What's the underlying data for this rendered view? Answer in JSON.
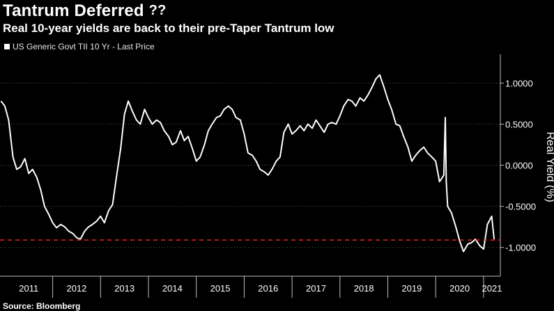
{
  "header": {
    "title": "Tantrum Deferred",
    "title_emoji": "??",
    "subtitle": "Real 10-year yields are back to their pre-Taper Tantrum low"
  },
  "legend": {
    "label": "US Generic Govt TII 10 Yr - Last Price"
  },
  "footer": {
    "source": "Source: Bloomberg"
  },
  "colors": {
    "background": "#000000",
    "line": "#ffffff",
    "reference": "#e8202a",
    "grid": "#5a5a5a"
  },
  "chart_data": {
    "type": "line",
    "title": "Tantrum Deferred",
    "subtitle": "Real 10-year yields are back to their pre-Taper Tantrum low",
    "ylabel": "Real Yield (%)",
    "xlabel": "",
    "ylim": [
      -1.35,
      1.35
    ],
    "xlim": [
      2010.9,
      2021.35
    ],
    "x_ticks": [
      2011,
      2012,
      2013,
      2014,
      2015,
      2016,
      2017,
      2018,
      2019,
      2020,
      2021
    ],
    "y_ticks": [
      1.0,
      0.5,
      0.0,
      -0.5,
      -1.0
    ],
    "y_tick_labels": [
      "1.0000",
      "0.5000",
      "0.0000",
      "-0.5000",
      "-1.0000"
    ],
    "grid": true,
    "legend_position": "top-left",
    "reference_line": {
      "y": -0.91,
      "style": "dashed"
    },
    "series": [
      {
        "name": "US Generic Govt TII 10 Yr - Last Price",
        "x": [
          2010.92,
          2011.0,
          2011.08,
          2011.17,
          2011.25,
          2011.33,
          2011.42,
          2011.5,
          2011.58,
          2011.67,
          2011.75,
          2011.83,
          2011.92,
          2012.0,
          2012.08,
          2012.17,
          2012.25,
          2012.33,
          2012.42,
          2012.5,
          2012.58,
          2012.67,
          2012.75,
          2012.83,
          2012.92,
          2013.0,
          2013.08,
          2013.17,
          2013.25,
          2013.33,
          2013.42,
          2013.5,
          2013.58,
          2013.67,
          2013.75,
          2013.83,
          2013.92,
          2014.0,
          2014.08,
          2014.17,
          2014.25,
          2014.33,
          2014.42,
          2014.5,
          2014.58,
          2014.67,
          2014.75,
          2014.83,
          2014.92,
          2015.0,
          2015.08,
          2015.17,
          2015.25,
          2015.33,
          2015.42,
          2015.5,
          2015.58,
          2015.67,
          2015.75,
          2015.83,
          2015.92,
          2016.0,
          2016.08,
          2016.17,
          2016.25,
          2016.33,
          2016.42,
          2016.5,
          2016.58,
          2016.67,
          2016.75,
          2016.83,
          2016.92,
          2017.0,
          2017.08,
          2017.17,
          2017.25,
          2017.33,
          2017.42,
          2017.5,
          2017.58,
          2017.67,
          2017.75,
          2017.83,
          2017.92,
          2018.0,
          2018.08,
          2018.17,
          2018.25,
          2018.33,
          2018.42,
          2018.5,
          2018.58,
          2018.67,
          2018.75,
          2018.83,
          2018.92,
          2019.0,
          2019.08,
          2019.17,
          2019.25,
          2019.33,
          2019.42,
          2019.5,
          2019.58,
          2019.67,
          2019.75,
          2019.83,
          2019.92,
          2020.0,
          2020.08,
          2020.17,
          2020.2,
          2020.22,
          2020.25,
          2020.33,
          2020.42,
          2020.5,
          2020.58,
          2020.67,
          2020.75,
          2020.83,
          2020.92,
          2021.0,
          2021.08,
          2021.17,
          2021.22
        ],
        "y": [
          0.78,
          0.72,
          0.55,
          0.1,
          -0.05,
          -0.02,
          0.08,
          -0.1,
          -0.05,
          -0.15,
          -0.3,
          -0.5,
          -0.6,
          -0.7,
          -0.76,
          -0.72,
          -0.75,
          -0.8,
          -0.83,
          -0.88,
          -0.9,
          -0.8,
          -0.75,
          -0.72,
          -0.68,
          -0.62,
          -0.7,
          -0.55,
          -0.48,
          -0.15,
          0.2,
          0.62,
          0.78,
          0.65,
          0.55,
          0.5,
          0.68,
          0.58,
          0.5,
          0.55,
          0.52,
          0.42,
          0.35,
          0.25,
          0.28,
          0.42,
          0.3,
          0.35,
          0.2,
          0.05,
          0.1,
          0.25,
          0.42,
          0.5,
          0.58,
          0.6,
          0.68,
          0.72,
          0.68,
          0.58,
          0.55,
          0.38,
          0.15,
          0.12,
          0.05,
          -0.05,
          -0.08,
          -0.12,
          -0.05,
          0.05,
          0.1,
          0.4,
          0.5,
          0.38,
          0.42,
          0.48,
          0.42,
          0.5,
          0.45,
          0.55,
          0.48,
          0.4,
          0.5,
          0.52,
          0.5,
          0.6,
          0.72,
          0.8,
          0.78,
          0.72,
          0.82,
          0.78,
          0.85,
          0.95,
          1.05,
          1.1,
          0.95,
          0.8,
          0.68,
          0.5,
          0.48,
          0.35,
          0.22,
          0.05,
          0.12,
          0.18,
          0.22,
          0.15,
          0.1,
          0.05,
          -0.2,
          -0.12,
          0.58,
          -0.2,
          -0.5,
          -0.58,
          -0.75,
          -0.92,
          -1.05,
          -0.96,
          -0.94,
          -0.9,
          -0.98,
          -1.02,
          -0.72,
          -0.62,
          -0.9
        ]
      }
    ]
  }
}
